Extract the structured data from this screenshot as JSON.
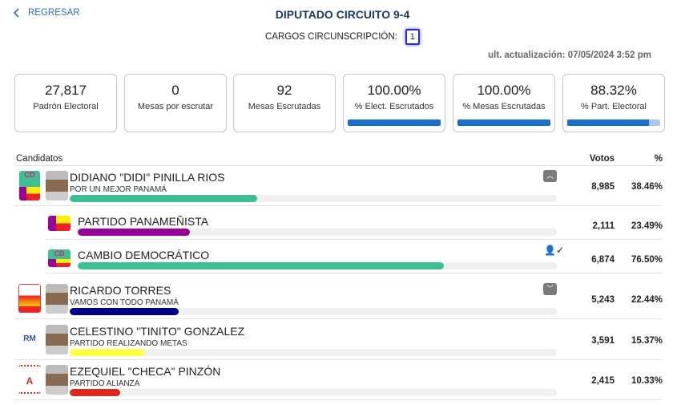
{
  "header": {
    "back_label": "REGRESAR",
    "title": "DIPUTADO CIRCUITO 9-4",
    "cargos_label": "CARGOS CIRCUNSCRIPCIÓN:",
    "cargos_value": "1",
    "updated": "ult. actualización: 07/05/2024 3:52 pm"
  },
  "stats": [
    {
      "value": "27,817",
      "label": "Padrón Electoral"
    },
    {
      "value": "0",
      "label": "Mesas por escrutar"
    },
    {
      "value": "92",
      "label": "Mesas Escrutadas"
    },
    {
      "value": "100.00%",
      "label": "% Elect. Escrutados",
      "progress": 100
    },
    {
      "value": "100.00%",
      "label": "% Mesas Escrutadas",
      "progress": 100
    },
    {
      "value": "88.32%",
      "label": "% Part. Electoral",
      "progress": 88.32
    }
  ],
  "table": {
    "col_candidates": "Candidatos",
    "col_votes": "Votos",
    "col_pct": "%"
  },
  "candidates": [
    {
      "name": "DIDIANO \"DIDI\" PINILLA RIOS",
      "party": "POR UN MEJOR PANAMÁ",
      "votes": "8,985",
      "pct": "38.46%",
      "share": 38.46,
      "color": "#3dbf94",
      "expanded": true,
      "parties": [
        {
          "name": "PARTIDO PANAMEÑISTA",
          "votes": "2,111",
          "pct": "23.49%",
          "share": 23.49,
          "color": "#990099"
        },
        {
          "name": "CAMBIO DEMOCRÁTICO",
          "votes": "6,874",
          "pct": "76.50%",
          "share": 76.5,
          "color": "#3dbf94",
          "icon": "person-check-icon"
        }
      ]
    },
    {
      "name": "RICARDO TORRES",
      "party": "VAMOS CON TODO PANAMÁ",
      "votes": "5,243",
      "pct": "22.44%",
      "share": 22.44,
      "color": "#00008b"
    },
    {
      "name": "CELESTINO \"TINITO\" GONZALEZ",
      "party": "PARTIDO REALIZANDO METAS",
      "votes": "3,591",
      "pct": "15.37%",
      "share": 15.37,
      "color": "#ffff44"
    },
    {
      "name": "EZEQUIEL \"CHECA\" PINZÓN",
      "party": "PARTIDO ALIANZA",
      "votes": "2,415",
      "pct": "10.33%",
      "share": 10.33,
      "color": "#d92a1c"
    }
  ]
}
